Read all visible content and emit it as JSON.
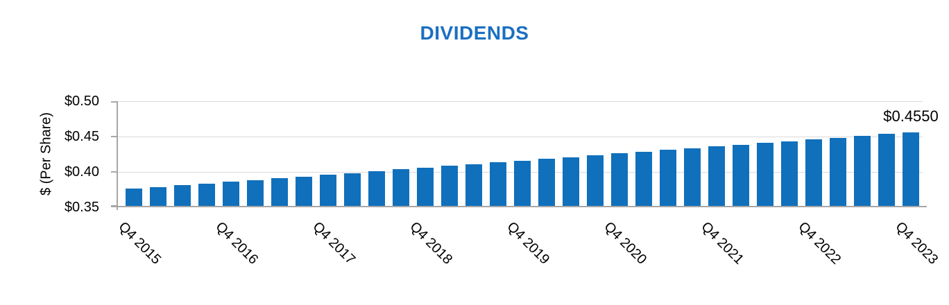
{
  "chart_data": {
    "type": "bar",
    "title": "DIVIDENDS",
    "ylabel": "$ (Per Share)",
    "ylim": [
      0.35,
      0.5
    ],
    "y_tick_labels": [
      "$0.50",
      "$0.45",
      "$0.40",
      "$0.35"
    ],
    "y_tick_values": [
      0.5,
      0.45,
      0.4,
      0.35
    ],
    "grid": "horizontal",
    "legend_position": "none",
    "values": [
      0.375,
      0.3775,
      0.38,
      0.3825,
      0.385,
      0.3875,
      0.39,
      0.3925,
      0.395,
      0.3975,
      0.4,
      0.4025,
      0.405,
      0.4075,
      0.41,
      0.4125,
      0.415,
      0.4175,
      0.42,
      0.4225,
      0.425,
      0.4275,
      0.43,
      0.4325,
      0.435,
      0.4375,
      0.44,
      0.4425,
      0.445,
      0.4475,
      0.45,
      0.4525,
      0.455
    ],
    "x_tick_positions": [
      0,
      4,
      8,
      12,
      16,
      20,
      24,
      28,
      32
    ],
    "x_tick_labels": [
      "Q4 2015",
      "Q4 2016",
      "Q4 2017",
      "Q4 2018",
      "Q4 2019",
      "Q4 2020",
      "Q4 2021",
      "Q4 2022",
      "Q4 2023"
    ],
    "annotation": {
      "text": "$0.4550",
      "bar_index": 32
    }
  },
  "colors": {
    "bar": "#1070BC",
    "title": "#1B6FC1",
    "axis": "#A6A6A6",
    "gridline": "#D9D9D9",
    "text": "#000000"
  }
}
